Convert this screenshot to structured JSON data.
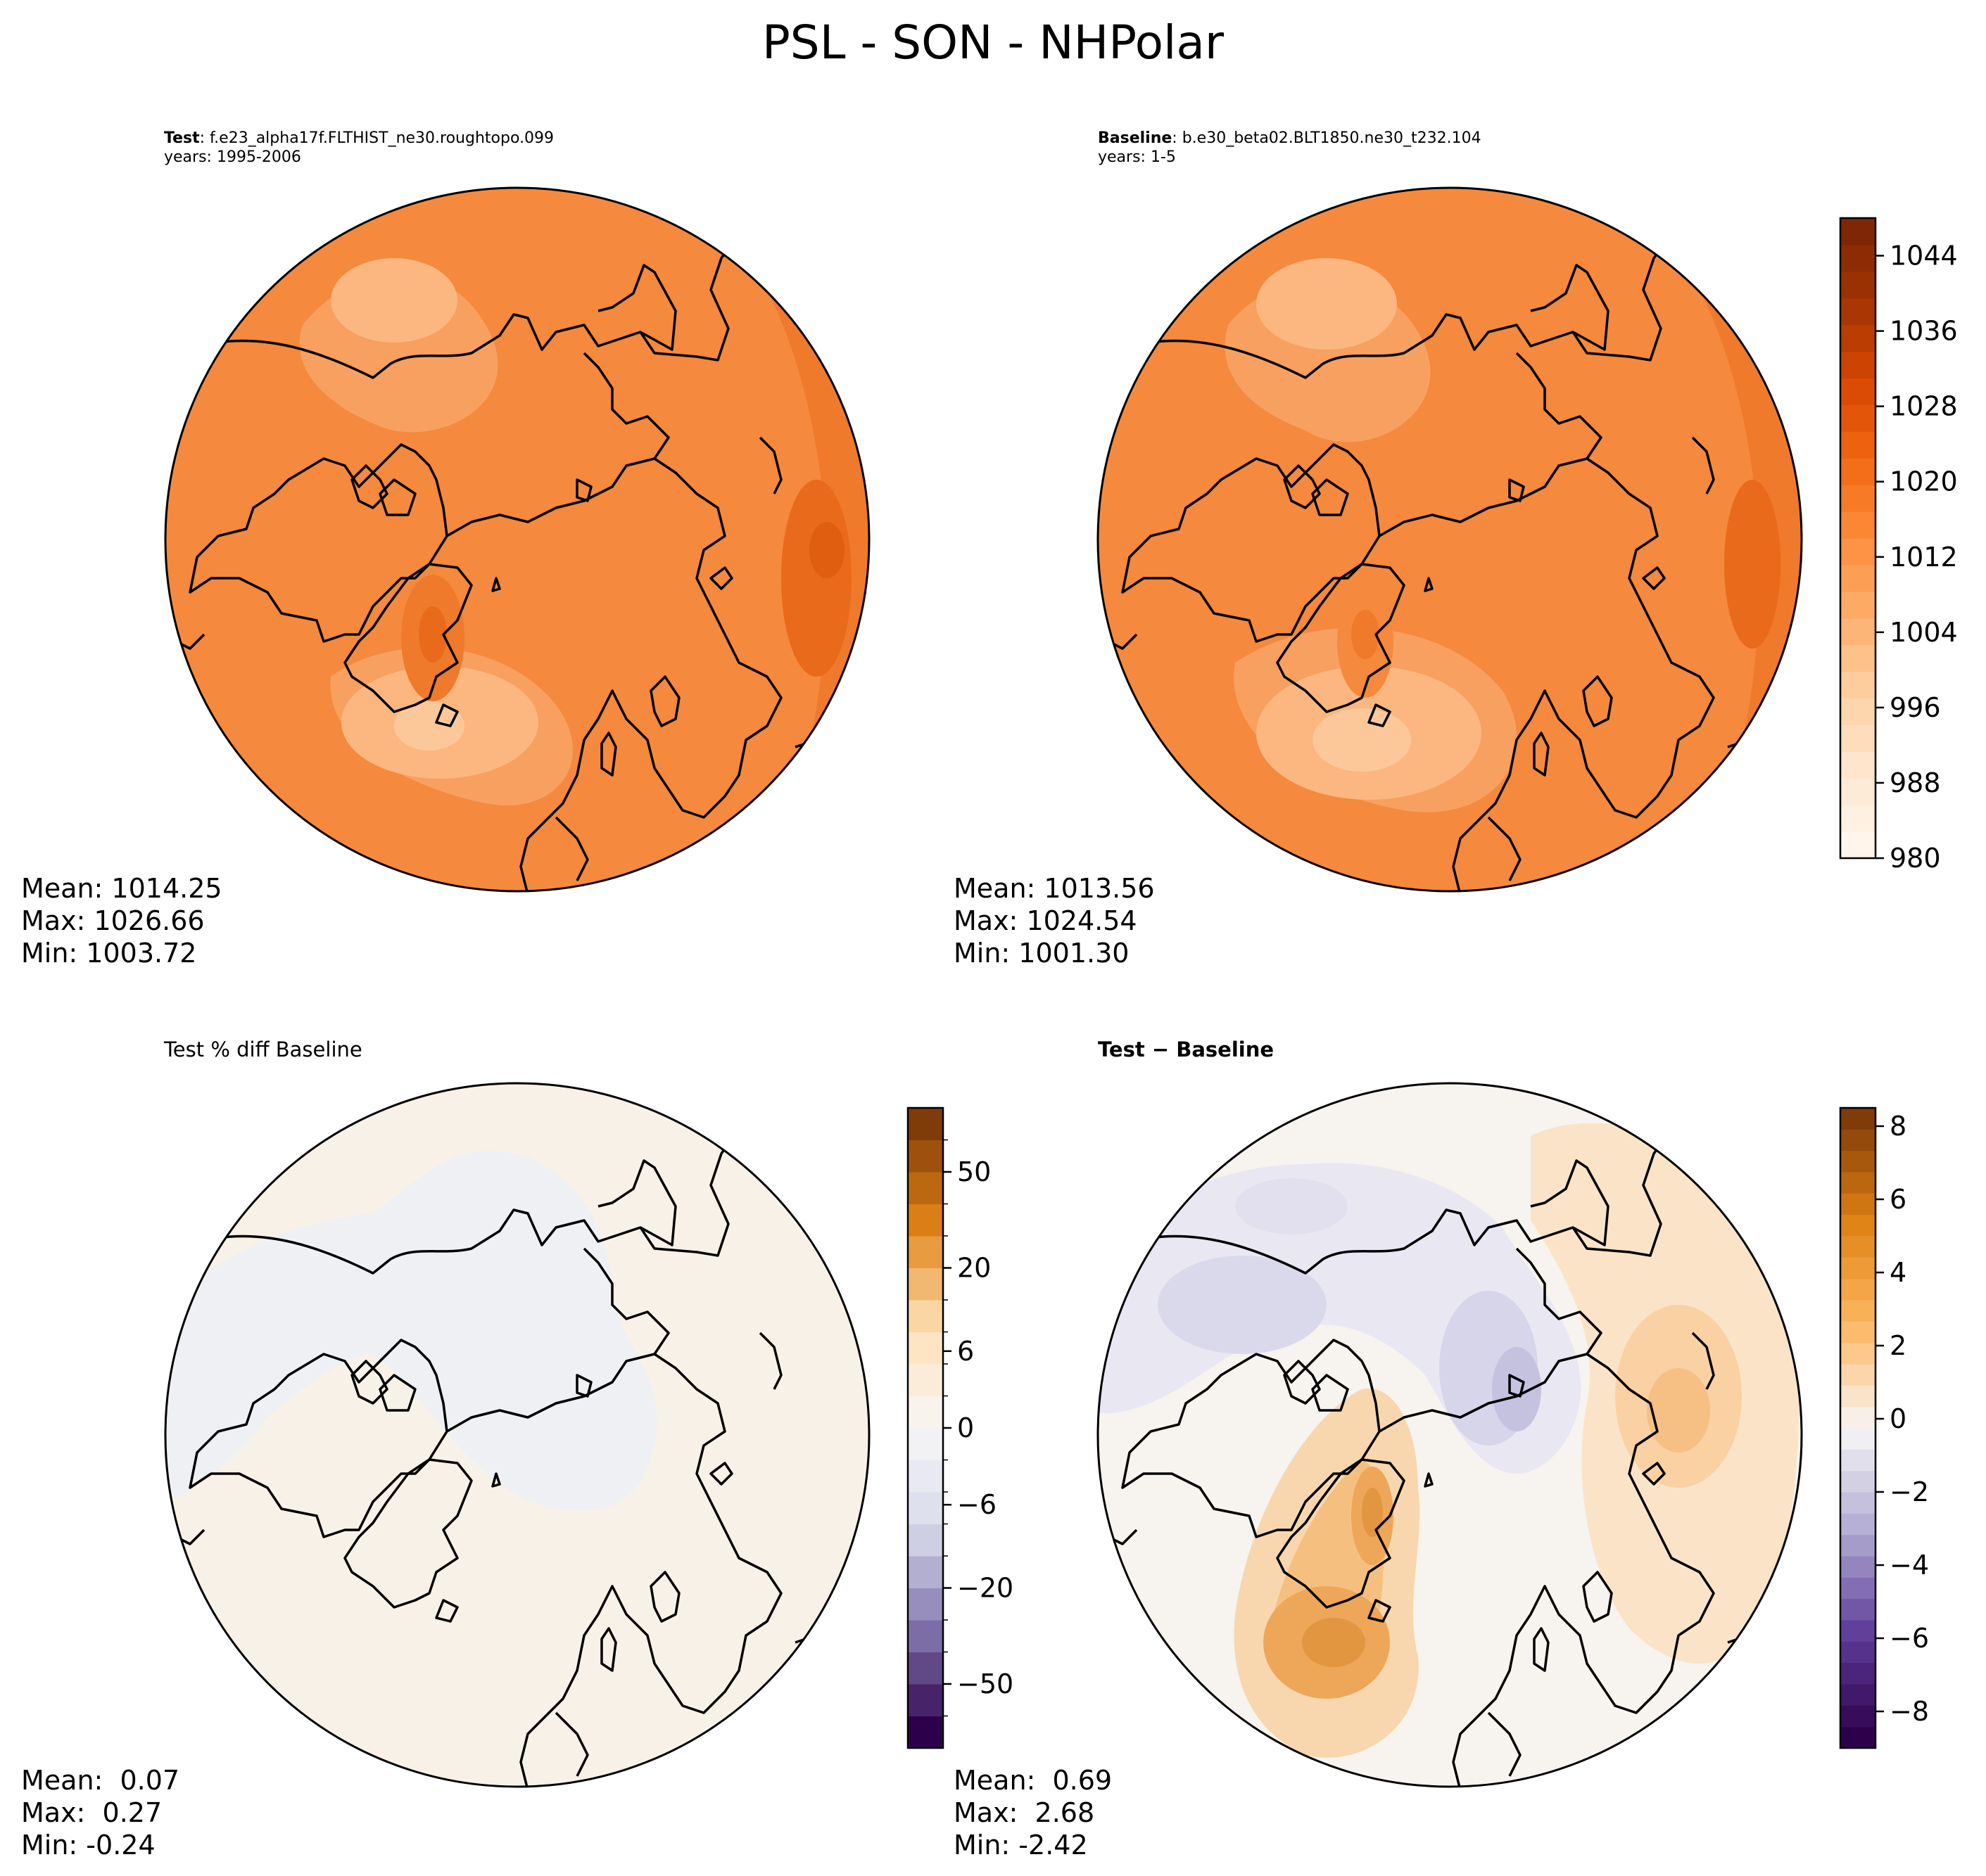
{
  "figure": {
    "title": "PSL - SON - NHPolar"
  },
  "panels": {
    "test": {
      "label_bold": "Test",
      "case": ": f.e23_alpha17f.FLTHIST_ne30.roughtopo.099",
      "years": "years: 1995-2006",
      "stats": {
        "mean": "Mean: 1014.25",
        "max": "Max: 1026.66",
        "min": "Min: 1003.72"
      }
    },
    "baseline": {
      "label_bold": "Baseline",
      "case": ": b.e30_beta02.BLT1850.ne30_t232.104",
      "years": "years: 1-5",
      "stats": {
        "mean": "Mean: 1013.56",
        "max": "Max: 1024.54",
        "min": "Min: 1001.30"
      }
    },
    "pct_diff": {
      "title": "Test % diff Baseline",
      "stats": {
        "mean": "Mean:  0.07",
        "max": "Max:  0.27",
        "min": "Min: -0.24"
      }
    },
    "abs_diff": {
      "title": "Test − Baseline",
      "stats": {
        "mean": "Mean:  0.69",
        "max": "Max:  2.68",
        "min": "Min: -2.42"
      }
    }
  },
  "colors": {
    "field_base": "#f5893e",
    "field_levels": [
      "#fff5eb",
      "#fee6ce",
      "#fdd0a2",
      "#fdae6b",
      "#fd8d3c",
      "#f16913",
      "#d94801",
      "#a63603",
      "#7f2704"
    ],
    "diff_neg": "#2d004b",
    "diff_pos": "#7f3b08",
    "diff_zero": "#f7f7f7"
  },
  "chart_data": [
    {
      "type": "heatmap",
      "name": "Test",
      "variable": "PSL",
      "season": "SON",
      "region": "NHPolar",
      "mean": 1014.25,
      "max": 1026.66,
      "min": 1003.72
    },
    {
      "type": "heatmap",
      "name": "Baseline",
      "variable": "PSL",
      "mean": 1013.56,
      "max": 1024.54,
      "min": 1001.3,
      "colorbar": {
        "ticks": [
          "980",
          "988",
          "996",
          "1004",
          "1012",
          "1020",
          "1028",
          "1036",
          "1044"
        ],
        "range": [
          980,
          1048
        ]
      }
    },
    {
      "type": "heatmap",
      "name": "Test % diff Baseline",
      "mean": 0.07,
      "max": 0.27,
      "min": -0.24,
      "colorbar": {
        "ticks": [
          "50",
          "20",
          "6",
          "0",
          "−6",
          "−20",
          "−50"
        ],
        "levels": 20
      }
    },
    {
      "type": "heatmap",
      "name": "Test − Baseline",
      "mean": 0.69,
      "max": 2.68,
      "min": -2.42,
      "colorbar": {
        "ticks": [
          "8",
          "6",
          "4",
          "2",
          "0",
          "−2",
          "−4",
          "−6",
          "−8"
        ],
        "range": [
          -9,
          8.5
        ]
      }
    }
  ]
}
